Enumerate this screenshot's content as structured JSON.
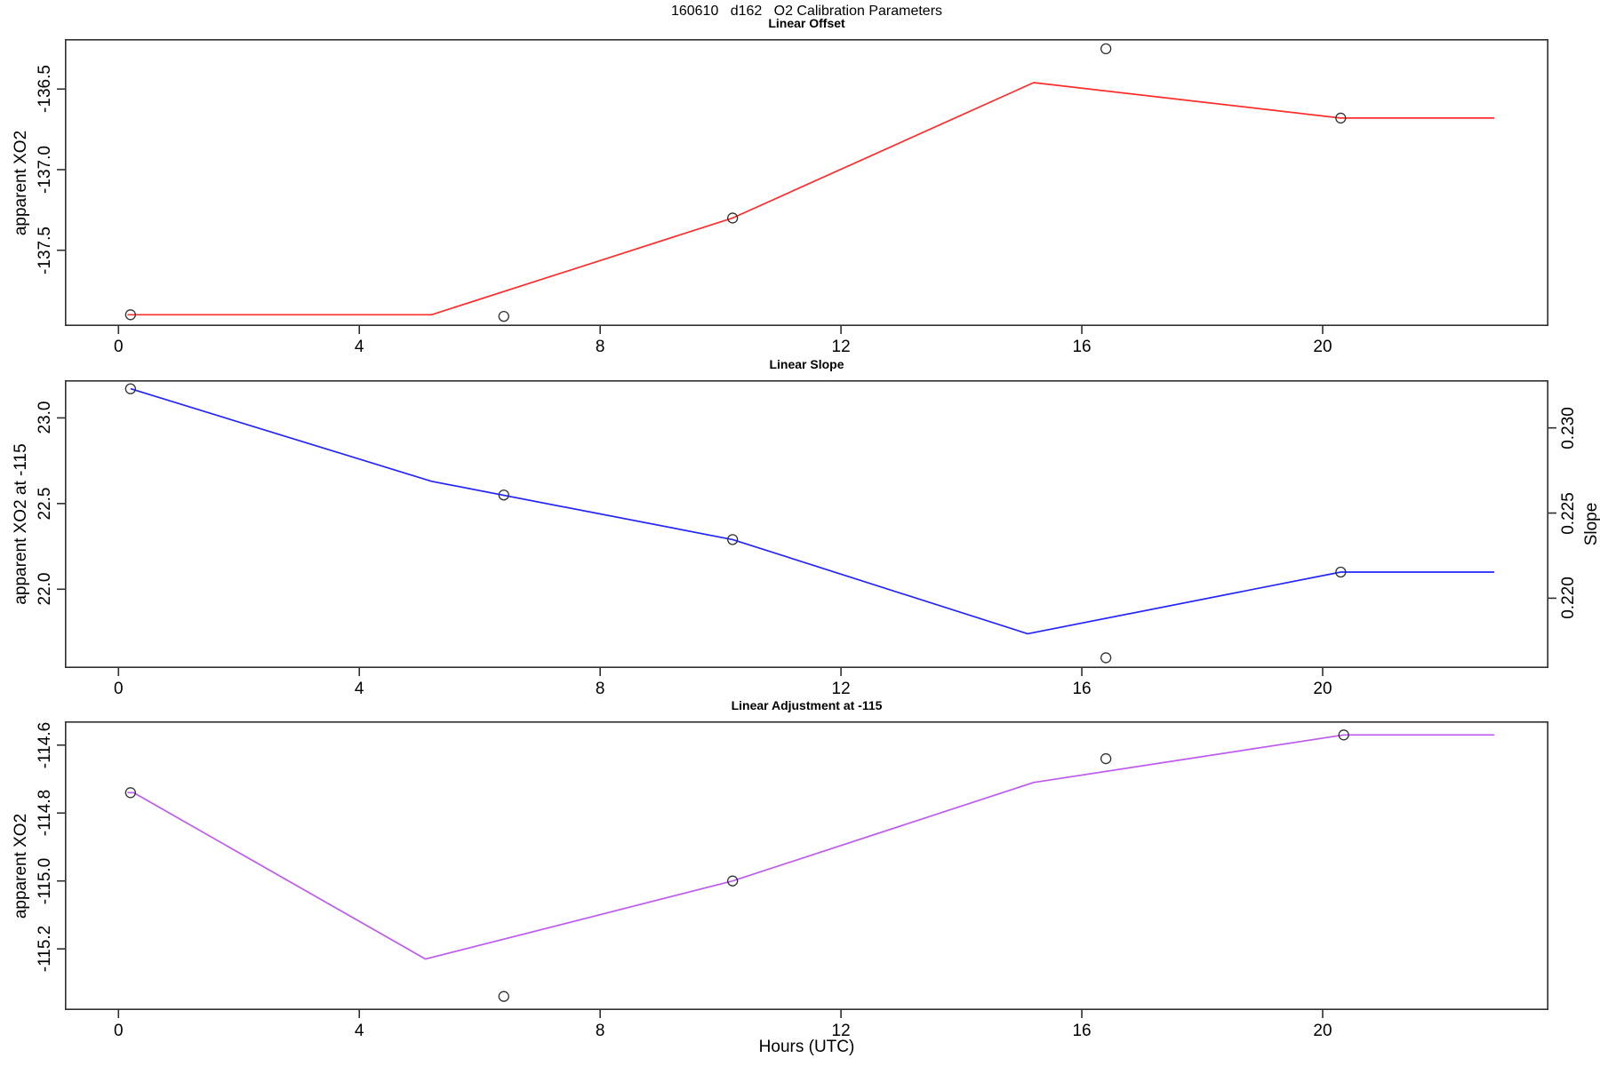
{
  "page_title": "160610   d162   O2 Calibration Parameters",
  "x_axis": {
    "label": "Hours (UTC)",
    "tick_labels": [
      "0",
      "4",
      "8",
      "12",
      "16",
      "20"
    ],
    "tick_values": [
      0,
      4,
      8,
      12,
      16,
      20
    ]
  },
  "point_style": {
    "shape": "open-circle",
    "color": "#303030"
  },
  "chart_data": [
    {
      "type": "line",
      "title": "Linear Offset",
      "ylabel": "apparent XO2",
      "xlim": [
        -0.89,
        23.75
      ],
      "ylim": [
        -137.97,
        -136.19
      ],
      "y_tick_values": [
        -136.5,
        -137.0,
        -137.5
      ],
      "y_tick_labels": [
        "-136.5",
        "-137.0",
        "-137.5"
      ],
      "line_color": "#ff2c2c",
      "line": {
        "x": [
          0.15,
          5.2,
          10.2,
          15.2,
          20.3,
          22.85
        ],
        "y": [
          -137.9,
          -137.9,
          -137.3,
          -136.46,
          -136.68,
          -136.68
        ]
      },
      "points": {
        "x": [
          0.2,
          6.4,
          10.2,
          16.4,
          20.3
        ],
        "y": [
          -137.9,
          -137.91,
          -137.3,
          -136.25,
          -136.68
        ]
      }
    },
    {
      "type": "line",
      "title": "Linear Slope",
      "ylabel": "apparent XO2 at -115",
      "y2label": "Slope",
      "xlim": [
        -0.89,
        23.75
      ],
      "ylim": [
        21.54,
        23.22
      ],
      "y_tick_values": [
        22.0,
        22.5,
        23.0
      ],
      "y_tick_labels": [
        "22.0",
        "22.5",
        "23.0"
      ],
      "y2lim": [
        0.2159,
        0.2328
      ],
      "y2_tick_values": [
        0.22,
        0.225,
        0.23
      ],
      "y2_tick_labels": [
        "0.220",
        "0.225",
        "0.230"
      ],
      "line_color": "#2424ff",
      "line": {
        "x": [
          0.2,
          5.2,
          10.2,
          15.1,
          20.3,
          22.85
        ],
        "y": [
          23.17,
          22.63,
          22.29,
          21.74,
          22.1,
          22.1
        ]
      },
      "points": {
        "x": [
          0.2,
          6.4,
          10.2,
          16.4,
          20.3
        ],
        "y": [
          23.17,
          22.55,
          22.29,
          21.6,
          22.1
        ]
      }
    },
    {
      "type": "line",
      "title": "Linear Adjustment at -115",
      "ylabel": "apparent XO2",
      "xlim": [
        -0.89,
        23.75
      ],
      "ylim": [
        -115.38,
        -114.53
      ],
      "y_tick_values": [
        -114.6,
        -114.8,
        -115.0,
        -115.2
      ],
      "y_tick_labels": [
        "-114.6",
        "-114.8",
        "-115.0",
        "-115.2"
      ],
      "line_color": "#be5af0",
      "line": {
        "x": [
          0.15,
          0.25,
          5.1,
          10.2,
          15.2,
          20.35,
          22.85
        ],
        "y": [
          -114.74,
          -114.74,
          -115.23,
          -115.0,
          -114.71,
          -114.57,
          -114.57
        ]
      },
      "points": {
        "x": [
          0.2,
          6.4,
          10.2,
          16.4,
          20.35
        ],
        "y": [
          -114.74,
          -115.34,
          -115.0,
          -114.64,
          -114.57
        ]
      }
    }
  ]
}
